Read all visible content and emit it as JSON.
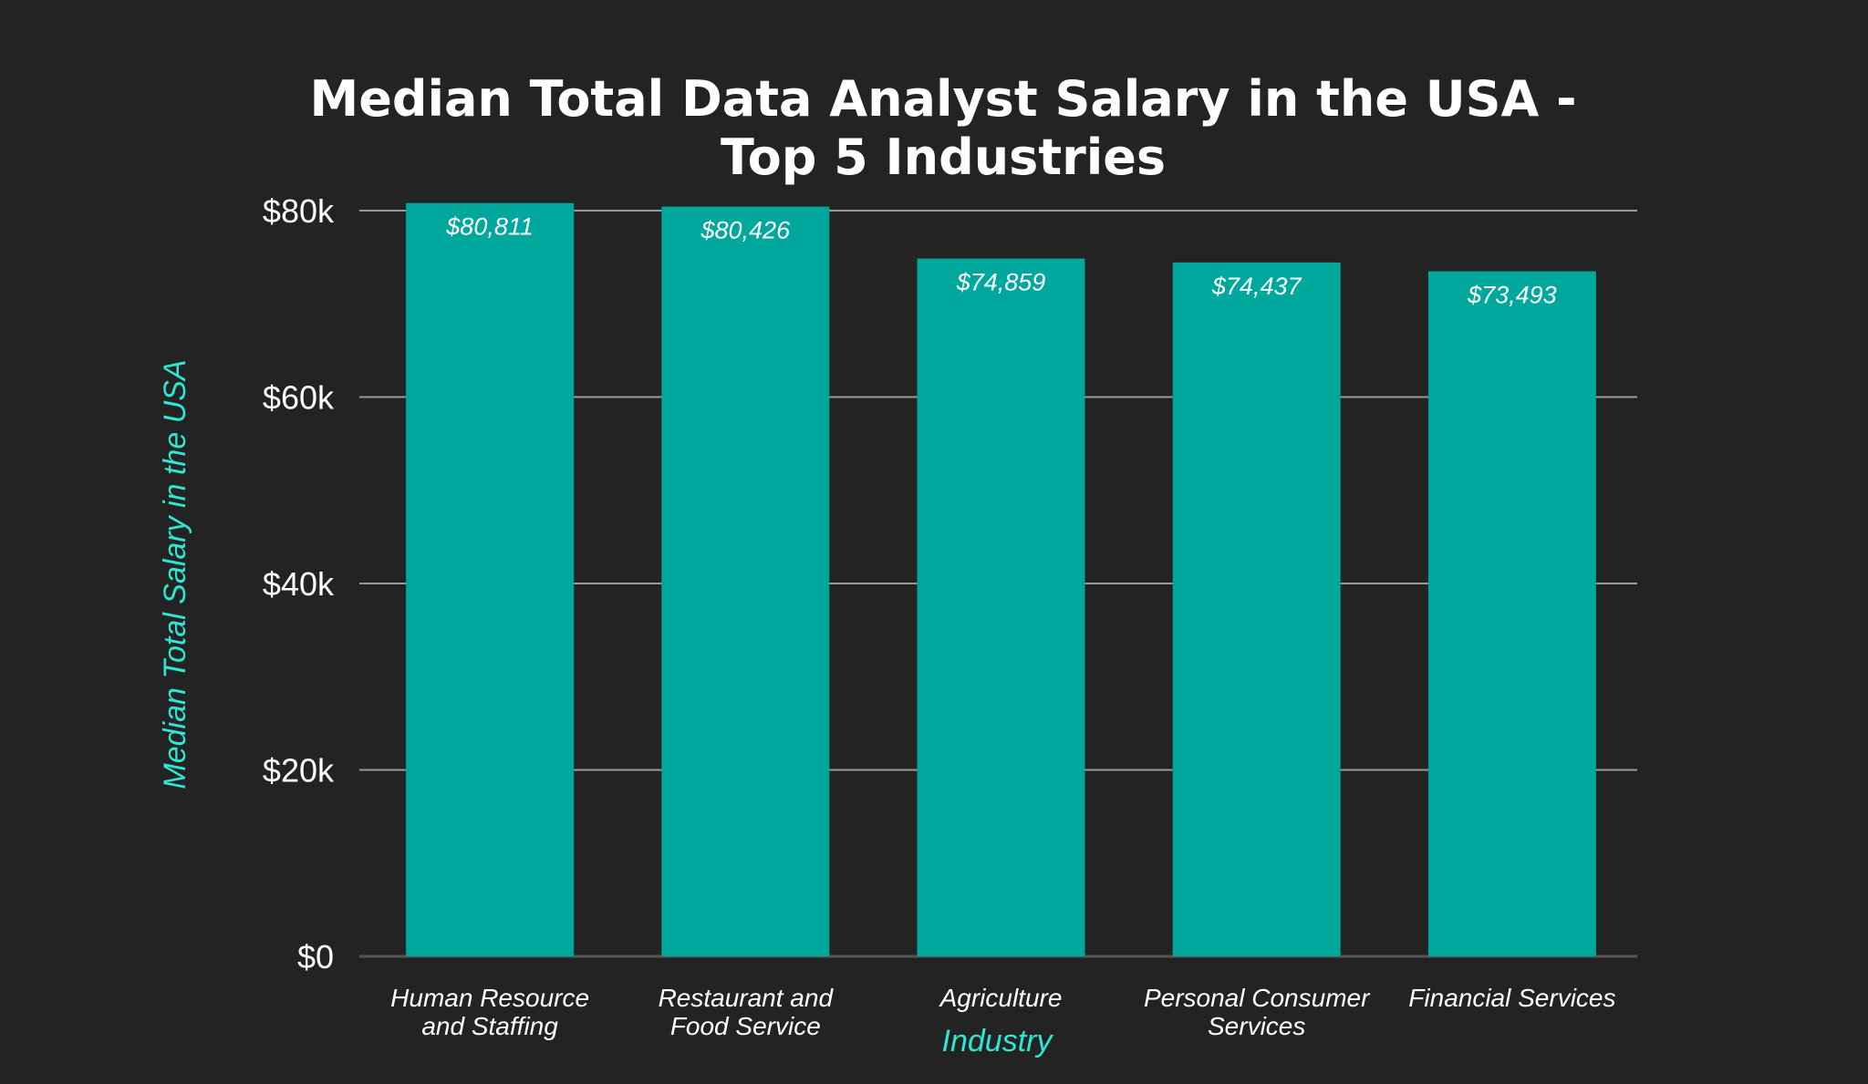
{
  "chart_data": {
    "type": "bar",
    "title": [
      "Median Total Data Analyst Salary in the USA -",
      "Top 5 Industries"
    ],
    "xlabel": "Industry",
    "ylabel": "Median Total Salary in the USA",
    "categories": [
      [
        "Human Resource",
        "and Staffing"
      ],
      [
        "Restaurant and",
        "Food Service"
      ],
      [
        "Agriculture"
      ],
      [
        "Personal Consumer",
        "Services"
      ],
      [
        "Financial Services"
      ]
    ],
    "values": [
      80811,
      80426,
      74859,
      74437,
      73493
    ],
    "data_labels": [
      "$80,811",
      "$80,426",
      "$74,859",
      "$74,437",
      "$73,493"
    ],
    "ylim": [
      0,
      80000
    ],
    "yticks": [
      0,
      20000,
      40000,
      60000,
      80000
    ],
    "ytick_labels": [
      "$0",
      "$20k",
      "$40k",
      "$60k",
      "$80k"
    ],
    "grid": true,
    "legend": "none",
    "colors": {
      "bar": "#00a79d",
      "background": "#232323",
      "axis_label": "#2ee6d3",
      "grid": "#9a9a9a",
      "text": "#ffffff"
    }
  }
}
